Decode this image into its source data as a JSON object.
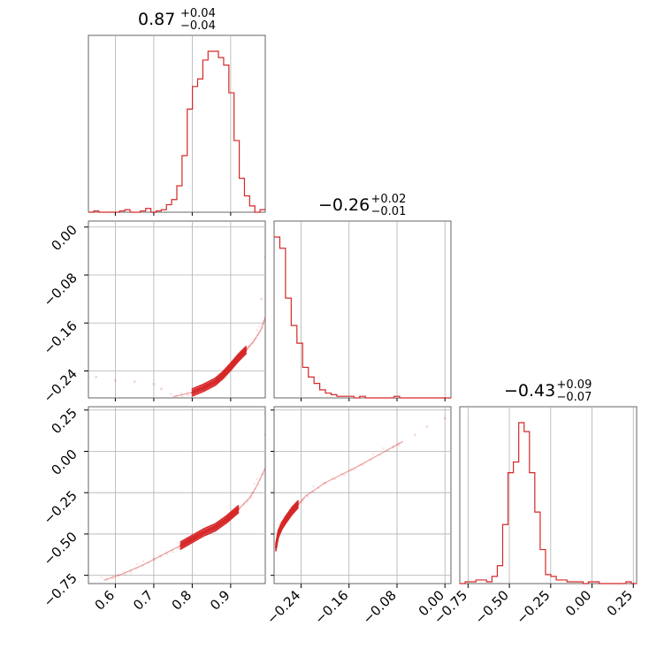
{
  "colors": {
    "series": "#d62728",
    "grid": "#b0b0b0",
    "frame": "#666666"
  },
  "chart_data": {
    "type": "corner",
    "grid": true,
    "parameters": [
      {
        "range": [
          0.53,
          0.99
        ],
        "ticks": [
          "0.6",
          "0.7",
          "0.8",
          "0.9"
        ],
        "tick_values": [
          0.6,
          0.7,
          0.8,
          0.9
        ],
        "title": {
          "median": "0.87",
          "plus": "+0.04",
          "minus": "−0.04"
        }
      },
      {
        "range": [
          -0.285,
          0.01
        ],
        "ticks": [
          "0.00",
          "−0.08",
          "−0.16",
          "−0.24"
        ],
        "tick_values": [
          0.0,
          -0.08,
          -0.16,
          -0.24
        ],
        "title": {
          "median": "−0.26",
          "plus": "+0.02",
          "minus": "−0.01"
        }
      },
      {
        "range": [
          -0.8,
          0.27
        ],
        "ticks": [
          "0.25",
          "0.00",
          "−0.25",
          "−0.50",
          "−0.75"
        ],
        "tick_values": [
          0.25,
          0.0,
          -0.25,
          -0.5,
          -0.75
        ],
        "title": {
          "median": "−0.43",
          "plus": "+0.09",
          "minus": "−0.07"
        }
      }
    ],
    "x_ticks": [
      {
        "labels": [
          "0.6",
          "0.7",
          "0.8",
          "0.9"
        ],
        "values": [
          0.6,
          0.7,
          0.8,
          0.9
        ]
      },
      {
        "labels": [
          "−0.24",
          "−0.16",
          "−0.08",
          "0.00"
        ],
        "values": [
          -0.24,
          -0.16,
          -0.08,
          0.0
        ]
      },
      {
        "labels": [
          "−0.75",
          "−0.50",
          "−0.25",
          "0.00",
          "0.25"
        ],
        "values": [
          -0.75,
          -0.5,
          -0.25,
          0.0,
          0.25
        ]
      }
    ],
    "histograms": [
      {
        "param": 0,
        "edges": [
          0.53,
          0.99
        ],
        "counts": [
          0,
          1,
          0,
          0,
          0,
          0,
          1,
          2,
          0,
          0,
          1,
          3,
          0,
          1,
          2,
          6,
          10,
          21,
          45,
          82,
          100,
          106,
          121,
          128,
          128,
          123,
          117,
          95,
          57,
          27,
          13,
          5,
          0,
          2
        ]
      },
      {
        "param": 1,
        "edges": [
          -0.285,
          0.01
        ],
        "counts": [
          100,
          93,
          62,
          45,
          34,
          19,
          13,
          9,
          5,
          3,
          2,
          1,
          1,
          1,
          0,
          1,
          0,
          0,
          0,
          0,
          0,
          1,
          0,
          0,
          0,
          0,
          0,
          0,
          0,
          0,
          0
        ]
      },
      {
        "param": 2,
        "edges": [
          -0.8,
          0.27
        ],
        "counts": [
          0,
          1,
          1,
          2,
          2,
          1,
          4,
          10,
          33,
          62,
          68,
          90,
          85,
          62,
          40,
          19,
          5,
          4,
          2,
          2,
          1,
          1,
          1,
          0,
          1,
          1,
          0,
          0,
          0,
          0,
          0,
          1,
          0
        ]
      }
    ],
    "joint": [
      {
        "x_param": 0,
        "y_param": 1,
        "ridge": [
          [
            0.75,
            -0.283
          ],
          [
            0.8,
            -0.276
          ],
          [
            0.83,
            -0.268
          ],
          [
            0.86,
            -0.258
          ],
          [
            0.88,
            -0.247
          ],
          [
            0.9,
            -0.233
          ],
          [
            0.92,
            -0.218
          ],
          [
            0.94,
            -0.205
          ],
          [
            0.96,
            -0.19
          ],
          [
            0.98,
            -0.17
          ],
          [
            0.99,
            -0.15
          ]
        ],
        "outliers": [
          [
            0.55,
            -0.25
          ],
          [
            0.6,
            -0.256
          ],
          [
            0.65,
            -0.258
          ],
          [
            0.7,
            -0.262
          ],
          [
            0.72,
            -0.27
          ],
          [
            0.98,
            -0.12
          ],
          [
            0.99,
            -0.05
          ]
        ],
        "contour_x": [
          0.78,
          0.95
        ]
      },
      {
        "x_param": 0,
        "y_param": 2,
        "ridge": [
          [
            0.57,
            -0.78
          ],
          [
            0.62,
            -0.74
          ],
          [
            0.67,
            -0.69
          ],
          [
            0.72,
            -0.63
          ],
          [
            0.77,
            -0.57
          ],
          [
            0.8,
            -0.53
          ],
          [
            0.83,
            -0.49
          ],
          [
            0.86,
            -0.46
          ],
          [
            0.89,
            -0.41
          ],
          [
            0.92,
            -0.35
          ],
          [
            0.95,
            -0.28
          ],
          [
            0.97,
            -0.2
          ],
          [
            0.99,
            -0.1
          ]
        ],
        "outliers": [
          [
            0.99,
            0.23
          ],
          [
            0.99,
            0.1
          ]
        ],
        "contour_x": [
          0.77,
          0.93
        ]
      },
      {
        "x_param": 1,
        "y_param": 2,
        "ridge": [
          [
            -0.282,
            -0.58
          ],
          [
            -0.278,
            -0.5
          ],
          [
            -0.272,
            -0.45
          ],
          [
            -0.265,
            -0.41
          ],
          [
            -0.255,
            -0.36
          ],
          [
            -0.245,
            -0.32
          ],
          [
            -0.232,
            -0.27
          ],
          [
            -0.2,
            -0.19
          ],
          [
            -0.15,
            -0.1
          ],
          [
            -0.1,
            0.0
          ],
          [
            -0.07,
            0.06
          ]
        ],
        "outliers": [
          [
            0.0,
            0.2
          ],
          [
            -0.03,
            0.15
          ],
          [
            -0.05,
            0.1
          ]
        ],
        "contour_x": [
          -0.283,
          -0.235
        ]
      }
    ]
  }
}
